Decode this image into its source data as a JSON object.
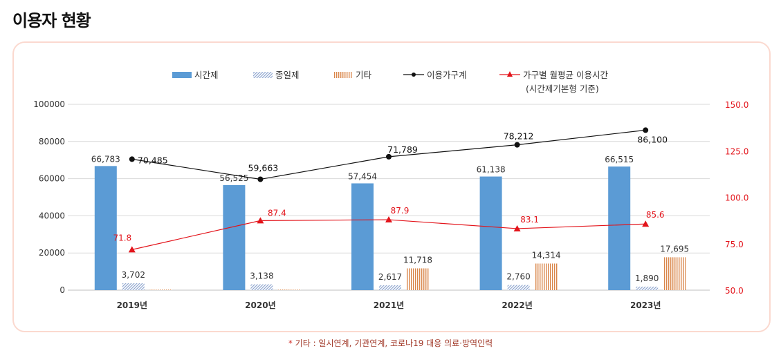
{
  "page": {
    "title": "이용자 현황",
    "footnote_star": "*",
    "footnote": "기타 : 일시연계, 기관연계, 코로나19 대응 의료·방역인력"
  },
  "colors": {
    "hourly": "#5b9bd5",
    "fullday": "#8fa6cf",
    "other": "#d9864a",
    "households": "#111111",
    "usage": "#e3141b",
    "grid": "#d9d9d9",
    "card_border": "#fbd9cf"
  },
  "chart_data": {
    "type": "bar",
    "title": "",
    "categories": [
      "2019년",
      "2020년",
      "2021년",
      "2022년",
      "2023년"
    ],
    "series": [
      {
        "name": "시간제",
        "kind": "bar",
        "axis": "left",
        "values": [
          66783,
          56525,
          57454,
          61138,
          66515
        ],
        "labels": [
          "66,783",
          "56,525",
          "57,454",
          "61,138",
          "66,515"
        ]
      },
      {
        "name": "종일제",
        "kind": "bar",
        "axis": "left",
        "values": [
          3702,
          3138,
          2617,
          2760,
          1890
        ],
        "labels": [
          "3,702",
          "3,138",
          "2,617",
          "2,760",
          "1,890"
        ]
      },
      {
        "name": "기타",
        "kind": "bar",
        "axis": "left",
        "values": [
          300,
          300,
          11718,
          14314,
          17695
        ],
        "labels": [
          "",
          "",
          "11,718",
          "14,314",
          "17,695"
        ]
      },
      {
        "name": "이용가구계",
        "kind": "line",
        "axis": "left",
        "values": [
          70485,
          59663,
          71789,
          78212,
          86100
        ],
        "labels": [
          "70,485",
          "59,663",
          "71,789",
          "78,212",
          "86,100"
        ]
      },
      {
        "name": "가구별 월평균 이용시간",
        "name_sub": "(시간제기본형 기준)",
        "kind": "line",
        "axis": "right",
        "values": [
          71.8,
          87.4,
          87.9,
          83.1,
          85.6
        ],
        "labels": [
          "71.8",
          "87.4",
          "87.9",
          "83.1",
          "85.6"
        ]
      }
    ],
    "y_left": {
      "min": 0,
      "max": 100000,
      "ticks": [
        "0",
        "20000",
        "40000",
        "60000",
        "80000",
        "100000"
      ]
    },
    "y_right": {
      "min": 50,
      "max": 150,
      "ticks": [
        "50.0",
        "75.0",
        "100.0",
        "125.0",
        "150.0"
      ]
    },
    "grid": true,
    "legend": "top"
  }
}
